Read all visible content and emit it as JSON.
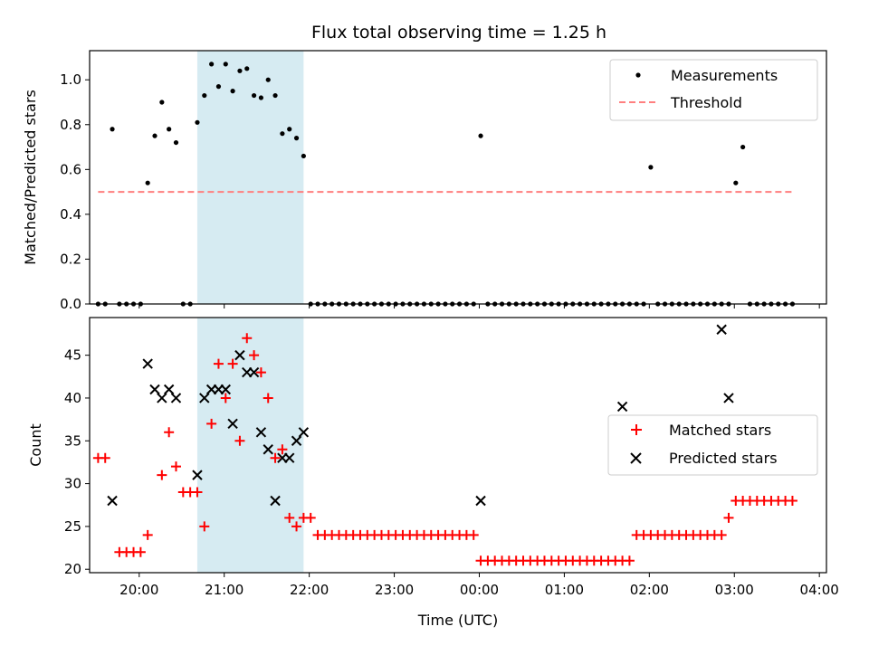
{
  "chart_data": {
    "title": "Flux total observing time = 1.25 h",
    "shaded_interval": {
      "start": "20:41",
      "end": "21:56",
      "color": "#add8e6"
    },
    "xlabel": "Time (UTC)",
    "xlim": [
      "19:25",
      "04:05"
    ],
    "x_ticks": [
      "20:00",
      "21:00",
      "22:00",
      "23:00",
      "00:00",
      "01:00",
      "02:00",
      "03:00",
      "04:00"
    ],
    "panels": [
      {
        "type": "scatter",
        "ylabel": "Matched/Predicted stars",
        "ylim": [
          0,
          1.13
        ],
        "y_ticks": [
          "0.0",
          "0.2",
          "0.4",
          "0.6",
          "0.8",
          "1.0"
        ],
        "legend": {
          "location": "upper right",
          "entries": [
            "Measurements",
            "Threshold"
          ]
        },
        "series": [
          {
            "name": "Measurements",
            "marker": "dot",
            "color": "#000000",
            "x": [
              "19:31",
              "19:36",
              "19:41",
              "19:46",
              "19:51",
              "19:56",
              "20:01",
              "20:06",
              "20:11",
              "20:16",
              "20:21",
              "20:26",
              "20:31",
              "20:36",
              "20:41",
              "20:46",
              "20:51",
              "20:56",
              "21:01",
              "21:06",
              "21:11",
              "21:16",
              "21:21",
              "21:26",
              "21:31",
              "21:36",
              "21:41",
              "21:46",
              "21:51",
              "21:56",
              "22:01",
              "22:06",
              "22:11",
              "22:16",
              "22:21",
              "22:26",
              "22:31",
              "22:36",
              "22:41",
              "22:46",
              "22:51",
              "22:56",
              "23:01",
              "23:06",
              "23:11",
              "23:16",
              "23:21",
              "23:26",
              "23:31",
              "23:36",
              "23:41",
              "23:46",
              "23:51",
              "23:56",
              "00:01",
              "00:06",
              "00:11",
              "00:16",
              "00:21",
              "00:26",
              "00:31",
              "00:36",
              "00:41",
              "00:46",
              "00:51",
              "00:56",
              "01:01",
              "01:06",
              "01:11",
              "01:16",
              "01:21",
              "01:26",
              "01:31",
              "01:36",
              "01:41",
              "01:46",
              "01:51",
              "01:56",
              "02:01",
              "02:06",
              "02:11",
              "02:16",
              "02:21",
              "02:26",
              "02:31",
              "02:36",
              "02:41",
              "02:46",
              "02:51",
              "02:56",
              "03:01",
              "03:06",
              "03:11",
              "03:16",
              "03:21",
              "03:26",
              "03:31",
              "03:36",
              "03:41"
            ],
            "values": [
              0,
              0,
              0.78,
              0,
              0,
              0,
              0,
              0.54,
              0.75,
              0.9,
              0.78,
              0.72,
              0,
              0,
              0.81,
              0.93,
              1.07,
              0.97,
              1.07,
              0.95,
              1.04,
              1.05,
              0.93,
              0.92,
              1.0,
              0.93,
              0.76,
              0.78,
              0.74,
              0.66,
              0,
              0,
              0,
              0,
              0,
              0,
              0,
              0,
              0,
              0,
              0,
              0,
              0,
              0,
              0,
              0,
              0,
              0,
              0,
              0,
              0,
              0,
              0,
              0,
              0.75,
              0,
              0,
              0,
              0,
              0,
              0,
              0,
              0,
              0,
              0,
              0,
              0,
              0,
              0,
              0,
              0,
              0,
              0,
              0,
              0,
              0,
              0,
              0,
              0.61,
              0,
              0,
              0,
              0,
              0,
              0,
              0,
              0,
              0,
              0,
              0,
              0.54,
              0.7,
              0,
              0,
              0,
              0,
              0,
              0,
              0
            ]
          },
          {
            "name": "Threshold",
            "type": "line",
            "style": "dashed",
            "color": "#ff7f7f",
            "x": [
              "19:31",
              "03:41"
            ],
            "values": [
              0.5,
              0.5
            ]
          }
        ]
      },
      {
        "type": "scatter",
        "ylabel": "Count",
        "ylim": [
          19.6,
          49.4
        ],
        "y_ticks": [
          "20",
          "25",
          "30",
          "35",
          "40",
          "45"
        ],
        "legend": {
          "location": "center right",
          "entries": [
            "Matched stars",
            "Predicted stars"
          ]
        },
        "series": [
          {
            "name": "Matched stars",
            "marker": "plus",
            "color": "#ff0000",
            "x": [
              "19:31",
              "19:36",
              "19:46",
              "19:51",
              "19:56",
              "20:01",
              "20:06",
              "20:16",
              "20:21",
              "20:26",
              "20:31",
              "20:36",
              "20:41",
              "20:46",
              "20:51",
              "20:56",
              "21:01",
              "21:06",
              "21:11",
              "21:16",
              "21:21",
              "21:26",
              "21:31",
              "21:36",
              "21:41",
              "21:46",
              "21:51",
              "21:56",
              "22:01",
              "22:06",
              "22:11",
              "22:16",
              "22:21",
              "22:26",
              "22:31",
              "22:36",
              "22:41",
              "22:46",
              "22:51",
              "22:56",
              "23:01",
              "23:06",
              "23:11",
              "23:16",
              "23:21",
              "23:26",
              "23:31",
              "23:36",
              "23:41",
              "23:46",
              "23:51",
              "23:56",
              "00:01",
              "00:06",
              "00:11",
              "00:16",
              "00:21",
              "00:26",
              "00:31",
              "00:36",
              "00:41",
              "00:46",
              "00:51",
              "00:56",
              "01:01",
              "01:06",
              "01:11",
              "01:16",
              "01:21",
              "01:26",
              "01:31",
              "01:36",
              "01:41",
              "01:46",
              "01:51",
              "01:56",
              "02:01",
              "02:06",
              "02:11",
              "02:16",
              "02:21",
              "02:26",
              "02:31",
              "02:36",
              "02:41",
              "02:46",
              "02:51",
              "02:56",
              "03:01",
              "03:06",
              "03:11",
              "03:16",
              "03:21",
              "03:26",
              "03:31",
              "03:36",
              "03:41"
            ],
            "values": [
              33,
              33,
              22,
              22,
              22,
              22,
              24,
              31,
              36,
              32,
              29,
              29,
              29,
              25,
              37,
              44,
              40,
              44,
              35,
              47,
              45,
              43,
              40,
              33,
              34,
              26,
              25,
              26,
              26,
              24,
              24,
              24,
              24,
              24,
              24,
              24,
              24,
              24,
              24,
              24,
              24,
              24,
              24,
              24,
              24,
              24,
              24,
              24,
              24,
              24,
              24,
              24,
              21,
              21,
              21,
              21,
              21,
              21,
              21,
              21,
              21,
              21,
              21,
              21,
              21,
              21,
              21,
              21,
              21,
              21,
              21,
              21,
              21,
              21,
              24,
              24,
              24,
              24,
              24,
              24,
              24,
              24,
              24,
              24,
              24,
              24,
              24,
              26,
              28,
              28,
              28,
              28,
              28,
              28,
              28,
              28,
              28
            ]
          },
          {
            "name": "Predicted stars",
            "marker": "x",
            "color": "#000000",
            "x": [
              "19:41",
              "20:06",
              "20:11",
              "20:16",
              "20:21",
              "20:26",
              "20:41",
              "20:46",
              "20:51",
              "20:56",
              "21:01",
              "21:06",
              "21:11",
              "21:16",
              "21:21",
              "21:26",
              "21:31",
              "21:36",
              "21:41",
              "21:46",
              "21:51",
              "21:56",
              "00:01",
              "01:41",
              "02:51",
              "02:56"
            ],
            "values": [
              28,
              44,
              41,
              40,
              41,
              40,
              31,
              40,
              41,
              41,
              41,
              37,
              45,
              43,
              43,
              36,
              34,
              28,
              33,
              33,
              35,
              36,
              28,
              39,
              48,
              40
            ]
          }
        ]
      }
    ]
  }
}
